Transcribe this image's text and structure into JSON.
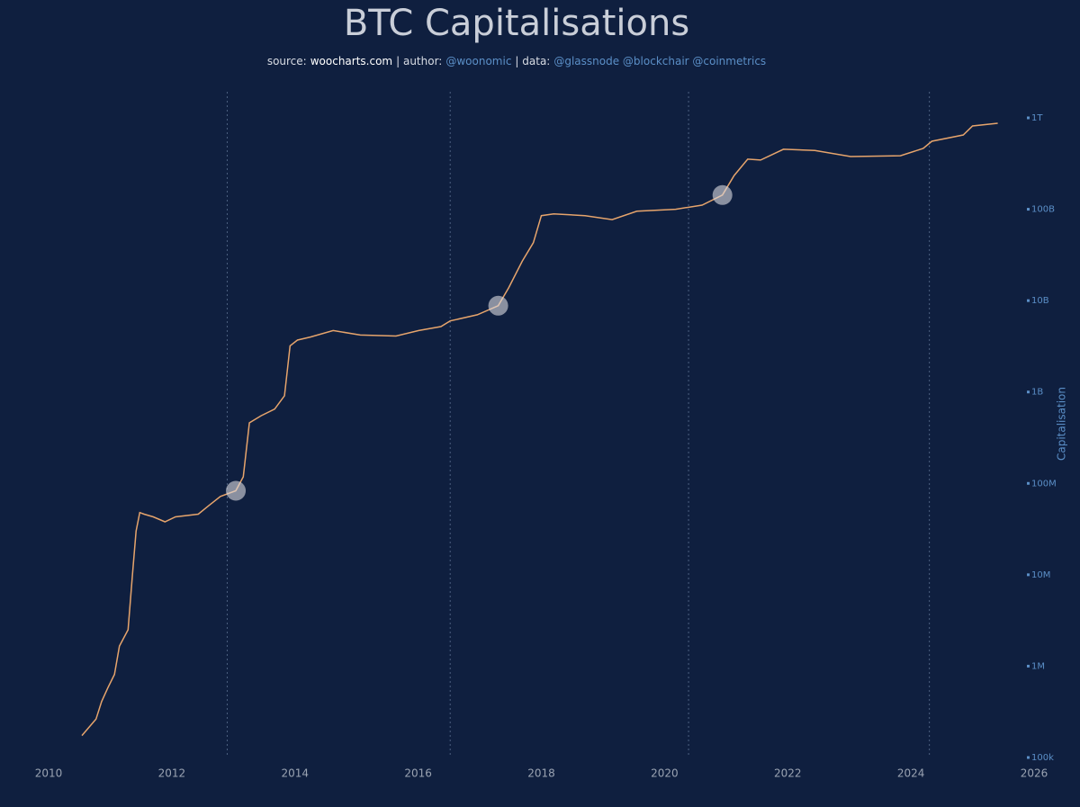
{
  "chart_data": {
    "type": "line",
    "title": "BTC Capitalisations",
    "subtitle": [
      {
        "text": "source:",
        "color": "#d8dce4"
      },
      {
        "text": "woocharts.com",
        "color": "#ffffff"
      },
      {
        "text": "| author:",
        "color": "#d8dce4"
      },
      {
        "text": "@woonomic",
        "color": "#5b8fc7"
      },
      {
        "text": "| data:",
        "color": "#d8dce4"
      },
      {
        "text": "@glassnode @blockchair @coinmetrics",
        "color": "#5b8fc7"
      }
    ],
    "y_label": "Capitalisation",
    "log_y": true,
    "color": "#e6a46c",
    "x": [
      2010.54,
      2010.77,
      2010.86,
      2010.96,
      2011.07,
      2011.15,
      2011.29,
      2011.36,
      2011.42,
      2011.48,
      2011.55,
      2011.7,
      2011.89,
      2012.06,
      2012.43,
      2012.6,
      2012.79,
      2013.04,
      2013.16,
      2013.26,
      2013.45,
      2013.67,
      2013.83,
      2013.92,
      2014.04,
      2014.25,
      2014.62,
      2015.06,
      2015.64,
      2016.01,
      2016.37,
      2016.52,
      2016.96,
      2017.3,
      2017.47,
      2017.69,
      2017.87,
      2018.0,
      2018.2,
      2018.71,
      2019.15,
      2019.55,
      2020.18,
      2020.61,
      2020.94,
      2021.13,
      2021.35,
      2021.56,
      2021.93,
      2022.44,
      2023.02,
      2023.83,
      2024.2,
      2024.34,
      2024.85,
      2025.0,
      2025.41
    ],
    "values": [
      174000,
      263000,
      410000,
      575000,
      813000,
      1660000,
      2500000,
      9800000,
      30000000,
      48000000,
      46000000,
      43000000,
      38000000,
      43000000,
      46000000,
      57000000,
      72000000,
      83000000,
      118000000,
      460000000,
      550000000,
      650000000,
      910000000,
      3200000000,
      3700000000,
      4000000000,
      4700000000,
      4200000000,
      4100000000,
      4700000000,
      5200000000,
      6000000000,
      7000000000,
      8800000000,
      13800000000,
      27000000000,
      43000000000,
      85000000000,
      89000000000,
      85000000000,
      77000000000,
      95000000000,
      100000000000,
      111000000000,
      143000000000,
      234000000000,
      353000000000,
      345000000000,
      453000000000,
      440000000000,
      377000000000,
      385000000000,
      463000000000,
      555000000000,
      650000000000,
      815000000000,
      873000000000
    ],
    "markers": {
      "x": [
        2013.04,
        2017.3,
        2020.94
      ],
      "values": [
        83000000,
        8800000000,
        143000000000
      ]
    },
    "halvings": [
      2012.9,
      2016.52,
      2020.39,
      2024.3
    ],
    "xlim": [
      2010,
      2026
    ],
    "xticks": [
      2010,
      2012,
      2014,
      2016,
      2018,
      2020,
      2022,
      2024,
      2026
    ],
    "ylim": [
      100000,
      1000000000000
    ],
    "yticks": [
      {
        "value": 100000,
        "label": "100k"
      },
      {
        "value": 1000000,
        "label": "1M"
      },
      {
        "value": 10000000,
        "label": "10M"
      },
      {
        "value": 100000000,
        "label": "100M"
      },
      {
        "value": 1000000000,
        "label": "1B"
      },
      {
        "value": 10000000000,
        "label": "10B"
      },
      {
        "value": 100000000000,
        "label": "100B"
      },
      {
        "value": 1000000000000,
        "label": "1T"
      }
    ]
  }
}
